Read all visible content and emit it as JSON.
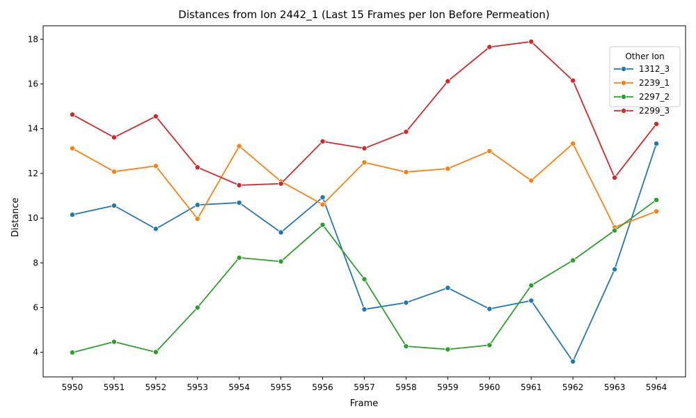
{
  "chart_data": {
    "type": "line",
    "title": "Distances from Ion 2442_1 (Last 15 Frames per Ion Before Permeation)",
    "xlabel": "Frame",
    "ylabel": "Distance",
    "x": [
      5950,
      5951,
      5952,
      5953,
      5954,
      5955,
      5956,
      5957,
      5958,
      5959,
      5960,
      5961,
      5962,
      5963,
      5964
    ],
    "ylim": [
      2.9,
      18.6
    ],
    "yticks": [
      4,
      6,
      8,
      10,
      12,
      14,
      16,
      18
    ],
    "grid": false,
    "legend": {
      "title": "Other Ion",
      "placement": "top-right"
    },
    "series": [
      {
        "name": "1312_3",
        "color": "#1f77b4",
        "values": [
          10.15,
          10.56,
          9.52,
          10.59,
          10.69,
          9.36,
          10.93,
          5.92,
          6.22,
          6.88,
          5.94,
          6.31,
          3.59,
          7.71,
          13.33
        ]
      },
      {
        "name": "2239_1",
        "color": "#ff7f0e",
        "values": [
          13.12,
          12.08,
          12.33,
          9.97,
          13.22,
          11.64,
          10.61,
          12.49,
          12.06,
          12.21,
          13.0,
          11.68,
          13.33,
          9.59,
          10.3
        ]
      },
      {
        "name": "2297_2",
        "color": "#2ca02c",
        "values": [
          3.99,
          4.47,
          4.01,
          6.0,
          8.23,
          8.06,
          9.7,
          7.27,
          4.27,
          4.13,
          4.32,
          6.99,
          8.11,
          9.45,
          10.81
        ]
      },
      {
        "name": "2299_3",
        "color": "#d62728",
        "values": [
          14.63,
          13.61,
          14.55,
          12.27,
          11.47,
          11.54,
          13.43,
          13.12,
          13.86,
          16.12,
          17.65,
          17.89,
          16.15,
          11.81,
          14.21
        ]
      }
    ]
  }
}
